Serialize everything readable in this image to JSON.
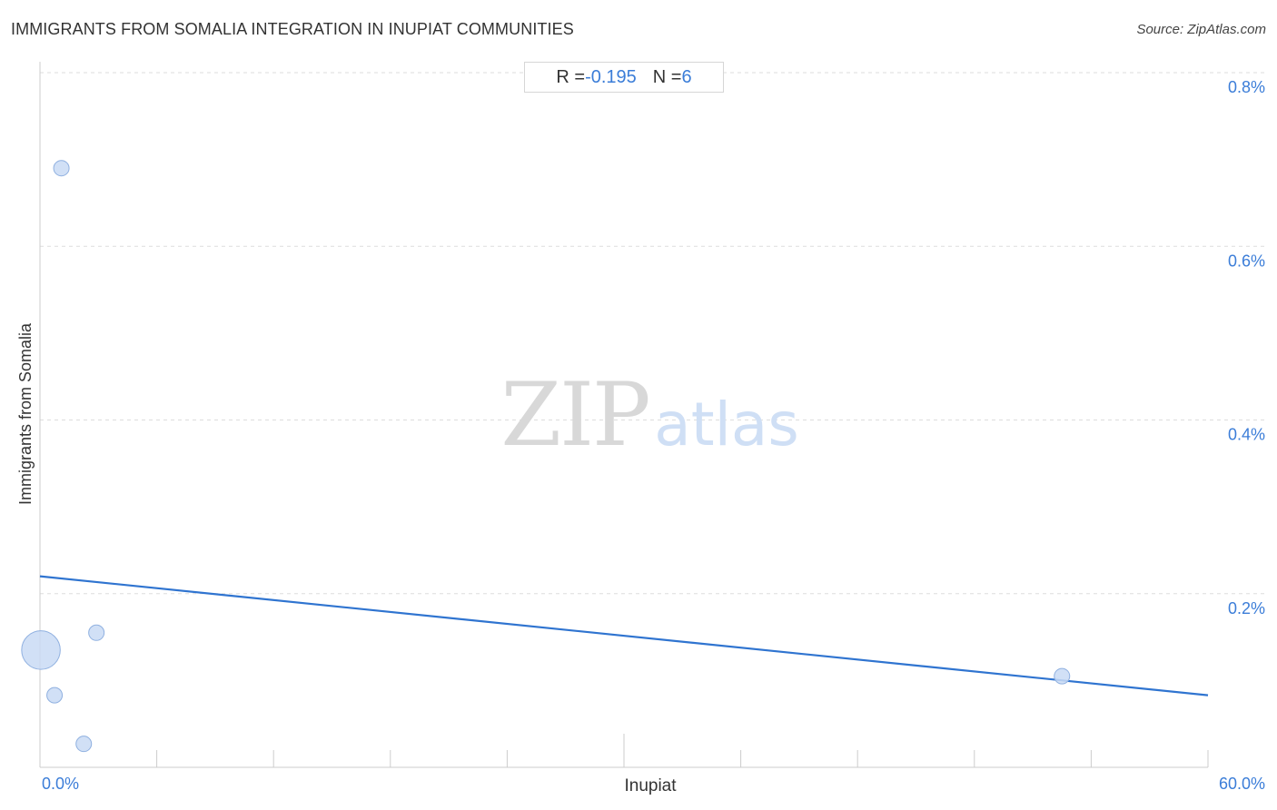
{
  "title": "IMMIGRANTS FROM SOMALIA INTEGRATION IN INUPIAT COMMUNITIES",
  "source": "Source: ZipAtlas.com",
  "stats": {
    "r_label": "R = ",
    "r_value": "-0.195",
    "n_label": "N = ",
    "n_value": "6"
  },
  "watermark": {
    "zip": "ZIP",
    "atlas": "atlas"
  },
  "colors": {
    "accent": "#3b7dd8",
    "point_fill": "#c9daf5",
    "point_stroke": "#8fb0e0",
    "trend": "#2f74d0",
    "grid": "#dddddd"
  },
  "chart_data": {
    "type": "scatter",
    "title": "IMMIGRANTS FROM SOMALIA INTEGRATION IN INUPIAT COMMUNITIES",
    "xlabel": "Inupiat",
    "ylabel": "Immigrants from Somalia",
    "xlim": [
      0,
      60
    ],
    "ylim": [
      0,
      0.8
    ],
    "x_tick_labels": [
      "0.0%",
      "60.0%"
    ],
    "y_ticks": [
      0.2,
      0.4,
      0.6,
      0.8
    ],
    "y_tick_labels": [
      "0.2%",
      "0.4%",
      "0.6%",
      "0.8%"
    ],
    "grid": true,
    "points": [
      {
        "x": 1.1,
        "y": 0.69,
        "size": 1
      },
      {
        "x": 0.05,
        "y": 0.135,
        "size": 2.5
      },
      {
        "x": 0.75,
        "y": 0.083,
        "size": 1
      },
      {
        "x": 2.9,
        "y": 0.155,
        "size": 1
      },
      {
        "x": 2.25,
        "y": 0.027,
        "size": 1
      },
      {
        "x": 52.5,
        "y": 0.105,
        "size": 1
      }
    ],
    "trendline": {
      "x": [
        0,
        60
      ],
      "y": [
        0.22,
        0.083
      ]
    },
    "r": -0.195,
    "n": 6
  }
}
